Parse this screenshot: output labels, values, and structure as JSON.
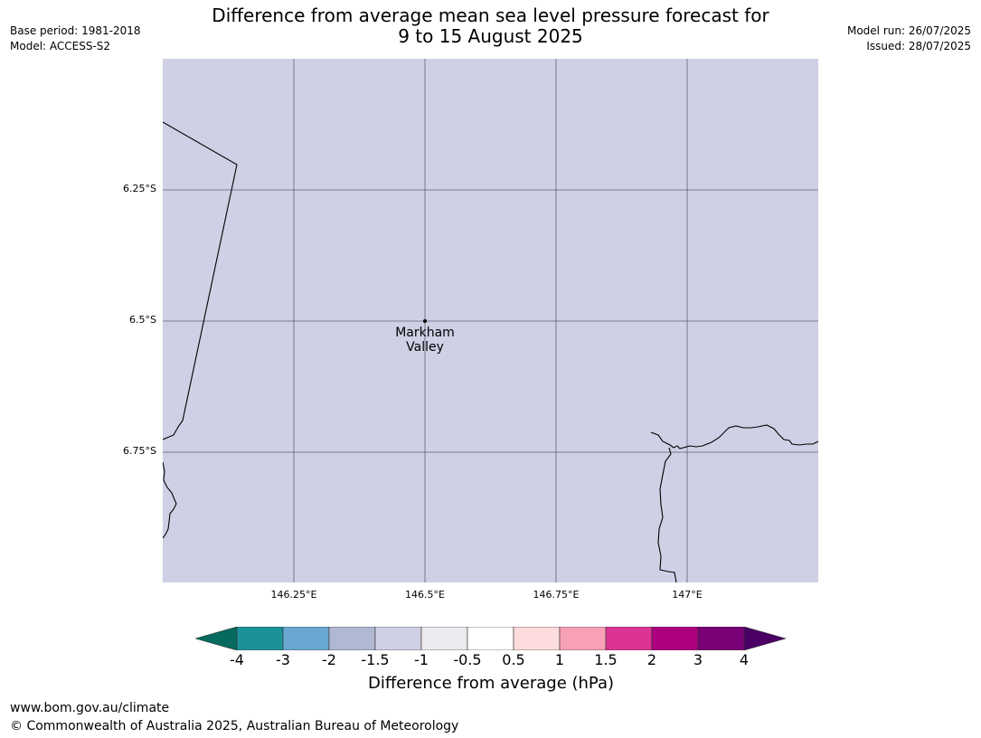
{
  "header": {
    "base_period": "Base period: 1981-2018",
    "model": "Model: ACCESS-S2",
    "title_line1": "Difference from average mean sea level pressure forecast for",
    "title_line2": "9 to 15 August 2025",
    "model_run": "Model run: 26/07/2025",
    "issued": "Issued: 28/07/2025"
  },
  "map": {
    "fill_color": "#cfd0e5",
    "place_name_line1": "Markham",
    "place_name_line2": "Valley",
    "lat_labels": [
      "6.25°S",
      "6.5°S",
      "6.75°S"
    ],
    "lon_labels": [
      "146.25°E",
      "146.5°E",
      "146.75°E",
      "147°E"
    ]
  },
  "legend": {
    "title": "Difference from average (hPa)",
    "ticks": [
      "-4",
      "-3",
      "-2",
      "-1.5",
      "-1",
      "-0.5",
      "0.5",
      "1",
      "1.5",
      "2",
      "3",
      "4"
    ],
    "colors": [
      "#066b5e",
      "#1b9298",
      "#68a8d1",
      "#b1b8d1",
      "#cfd0e5",
      "#eceaef",
      "#ffffff",
      "#fcdcdc",
      "#f8a0b5",
      "#dc3494",
      "#ad017e",
      "#7a0177",
      "#4b0066"
    ]
  },
  "footer": {
    "url": "www.bom.gov.au/climate",
    "copyright": "© Commonwealth of Australia 2025, Australian Bureau of Meteorology"
  }
}
